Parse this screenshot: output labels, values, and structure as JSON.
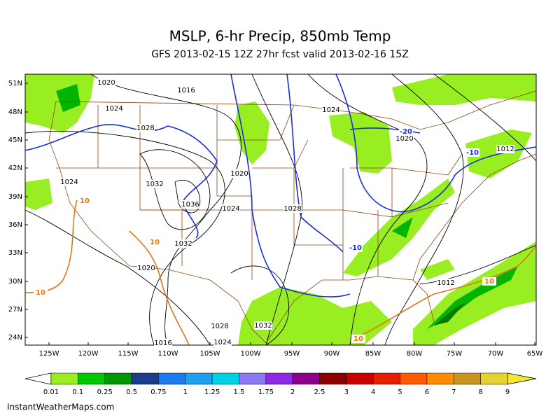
{
  "header": {
    "title": "MSLP, 6-hr Precip, 850mb Temp",
    "subtitle": "GFS 2013-02-15 12Z 27hr fcst valid 2013-02-16 15Z"
  },
  "map": {
    "lat_labels": [
      "51N",
      "48N",
      "45N",
      "42N",
      "39N",
      "36N",
      "33N",
      "30N",
      "27N",
      "24N"
    ],
    "lon_labels": [
      "125W",
      "120W",
      "115W",
      "110W",
      "105W",
      "100W",
      "95W",
      "90W",
      "85W",
      "80W",
      "75W",
      "70W",
      "65W"
    ],
    "isobar_labels": [
      "1020",
      "1016",
      "1024",
      "1028",
      "1024",
      "1020",
      "1012",
      "1020",
      "1024",
      "1032",
      "1036",
      "1024",
      "1028",
      "1032",
      "1020",
      "1012",
      "1028",
      "1032",
      "1016",
      "1024"
    ],
    "temperature_labels": [
      "-20",
      "-10",
      "-10",
      "10",
      "10",
      "10",
      "10",
      "10"
    ]
  },
  "legend": {
    "labels": [
      "0.01",
      "0.1",
      "0.25",
      "0.5",
      "0.75",
      "1",
      "1.25",
      "1.5",
      "1.75",
      "2",
      "2.5",
      "3",
      "4",
      "5",
      "6",
      "7",
      "8",
      "9"
    ]
  },
  "footer": "InstantWeatherMaps.com"
}
